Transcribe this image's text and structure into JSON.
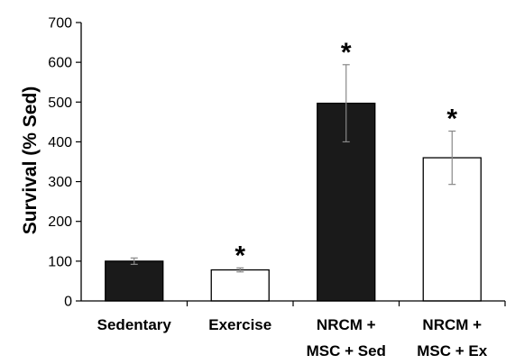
{
  "chart_data": {
    "type": "bar",
    "title": "",
    "xlabel": "",
    "ylabel": "Survival (% Sed)",
    "ylim": [
      0,
      700
    ],
    "yticks": [
      0,
      100,
      200,
      300,
      400,
      500,
      600,
      700
    ],
    "grid": false,
    "categories": [
      [
        "Sedentary"
      ],
      [
        "Exercise"
      ],
      [
        "NRCM +",
        "MSC + Sed"
      ],
      [
        "NRCM +",
        "MSC + Ex"
      ]
    ],
    "values": [
      100,
      78,
      497,
      360
    ],
    "error": [
      8,
      5,
      97,
      67
    ],
    "bar_colors": [
      "#1a1a1a",
      "#ffffff",
      "#1a1a1a",
      "#ffffff"
    ],
    "significance": [
      "",
      "*",
      "*",
      "*"
    ]
  }
}
